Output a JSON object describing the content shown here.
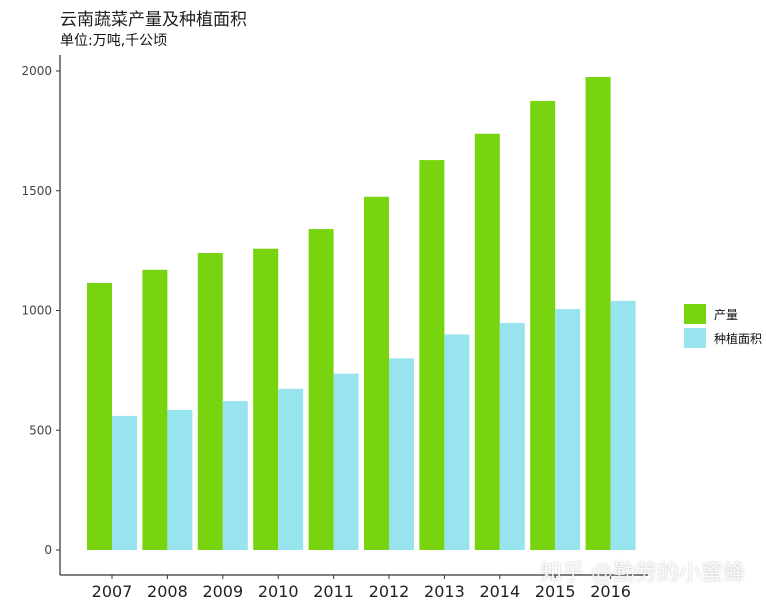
{
  "colors": {
    "production": "#78d40f",
    "area": "#97e4ef"
  },
  "watermark": "知乎 @勤劳的小蜜蜂",
  "chart_data": {
    "type": "bar",
    "title": "云南蔬菜产量及种植面积",
    "subtitle": "单位:万吨,千公顷",
    "xlabel": "",
    "ylabel": "",
    "categories": [
      "2007",
      "2008",
      "2009",
      "2010",
      "2011",
      "2012",
      "2013",
      "2014",
      "2015",
      "2016"
    ],
    "series": [
      {
        "name": "产量",
        "values": [
          1115,
          1170,
          1240,
          1258,
          1340,
          1475,
          1628,
          1738,
          1875,
          1975
        ]
      },
      {
        "name": "种植面积",
        "values": [
          560,
          585,
          622,
          673,
          736,
          800,
          900,
          948,
          1006,
          1040
        ]
      }
    ],
    "ylim": [
      0,
      2000
    ],
    "yticks": [
      0,
      500,
      1000,
      1500,
      2000
    ],
    "grid": false,
    "legend_position": "right"
  }
}
